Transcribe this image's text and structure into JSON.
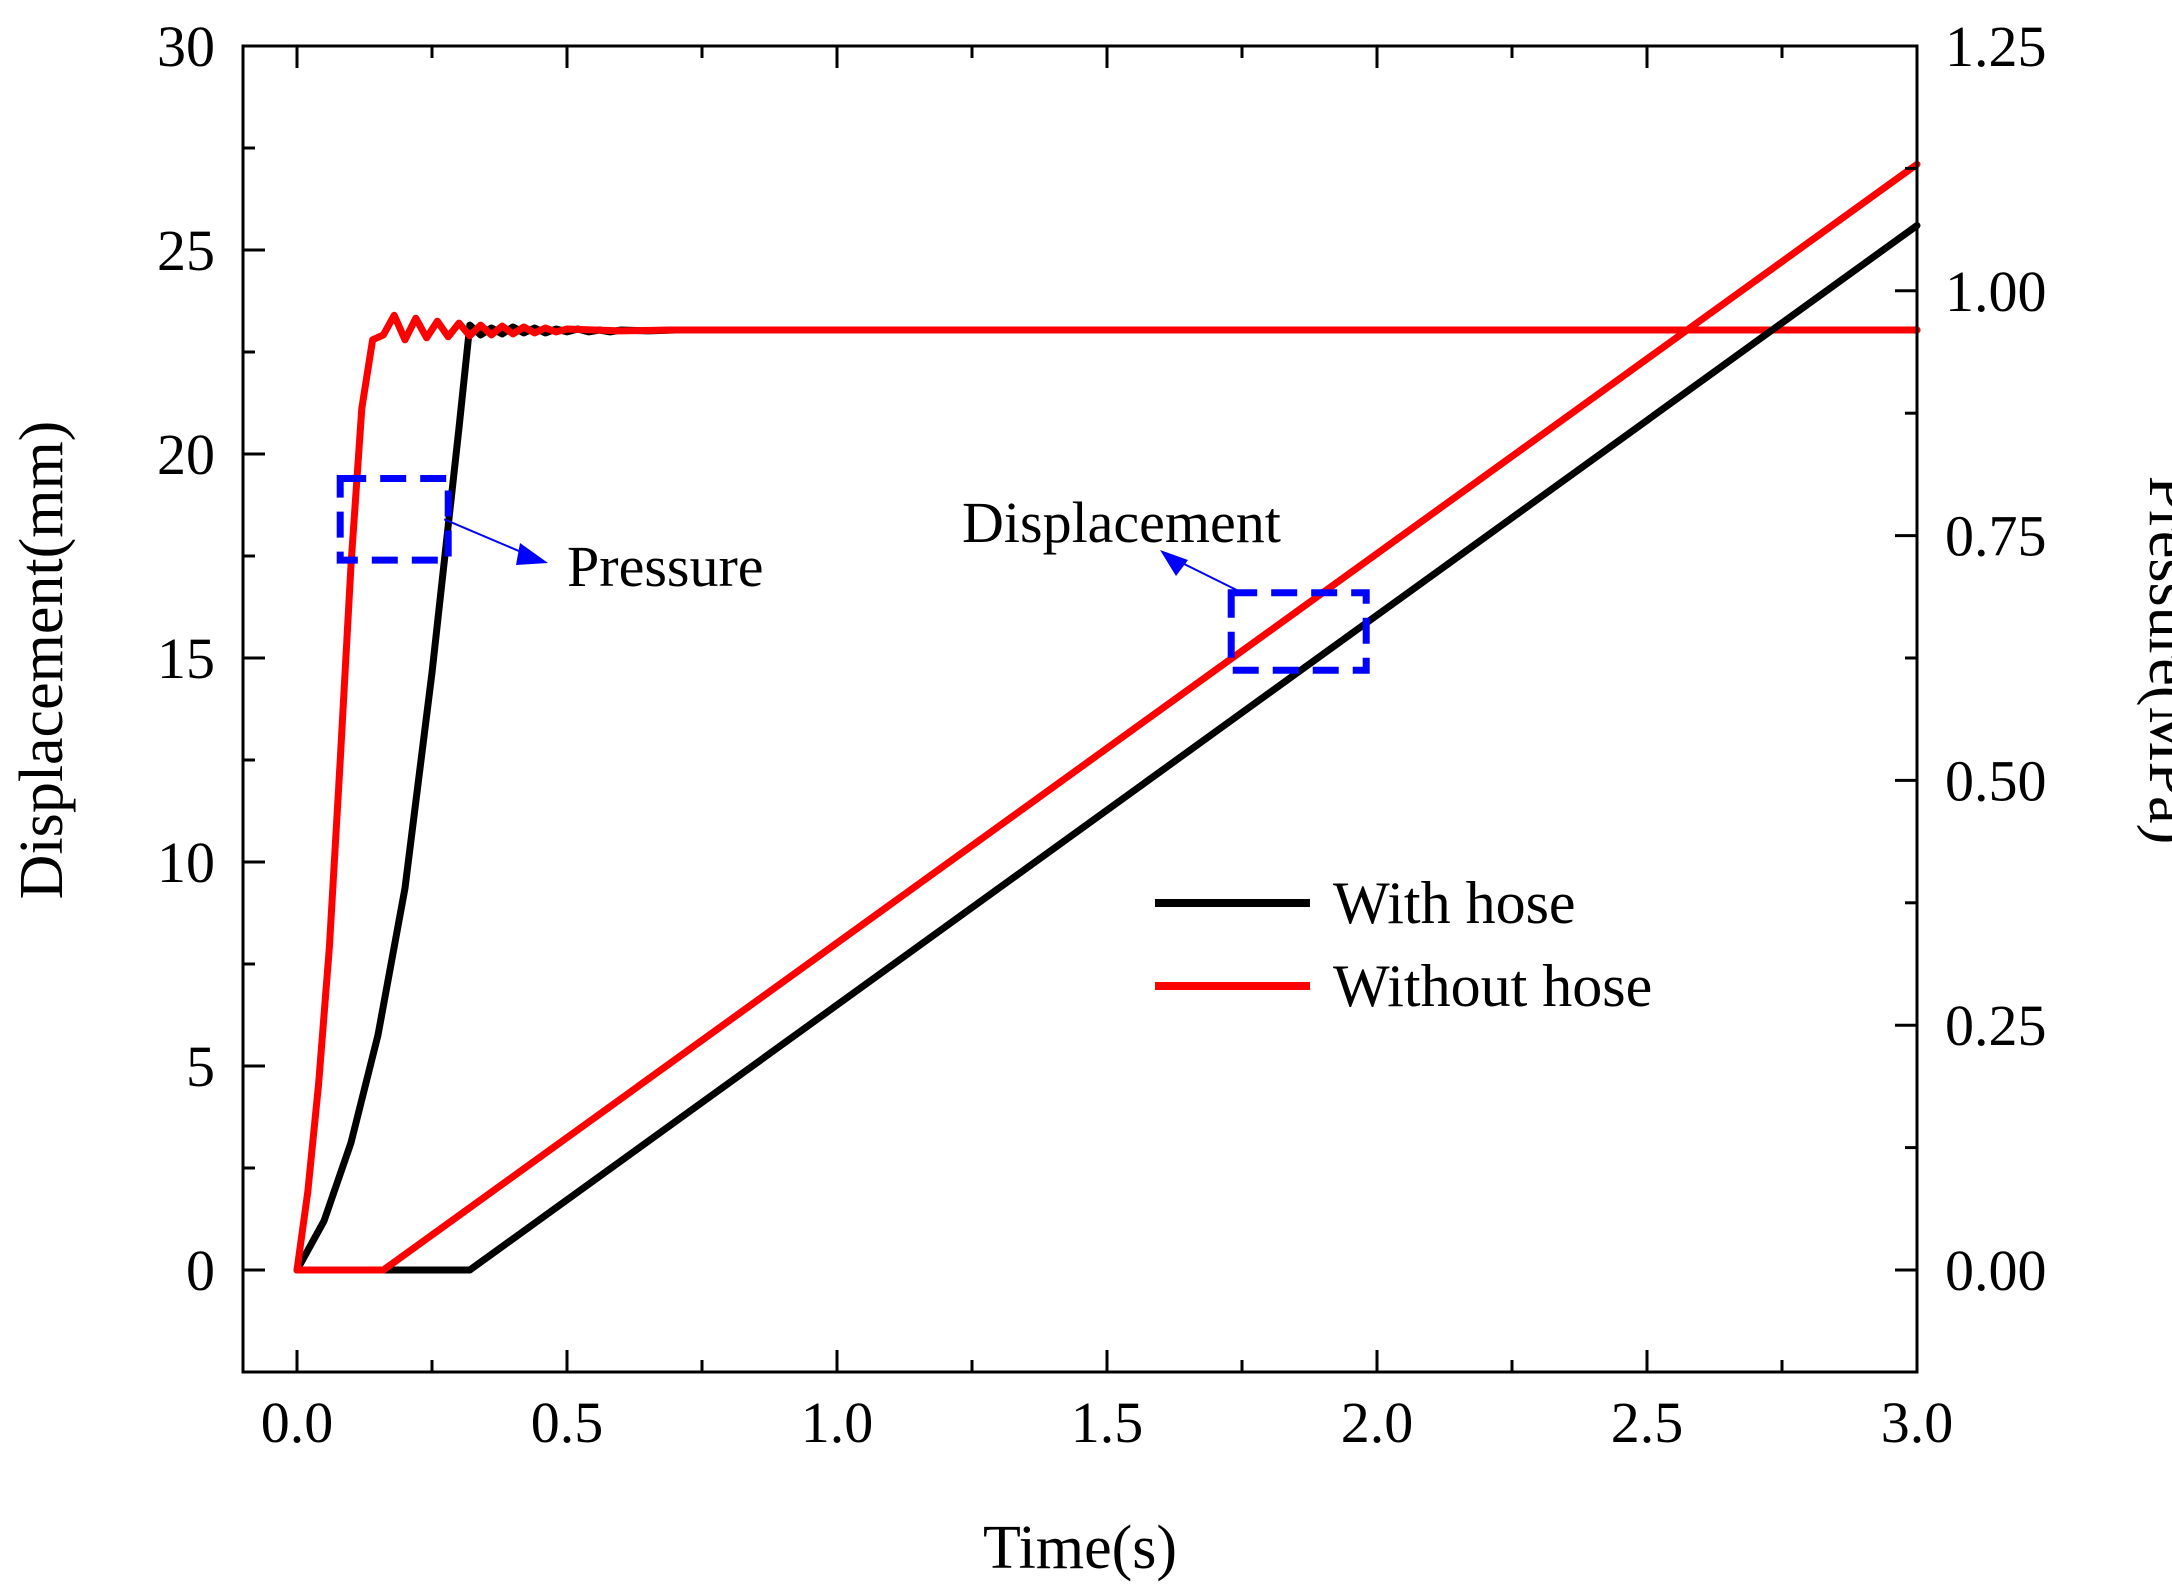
{
  "chart_data": {
    "type": "line",
    "title": "",
    "xlabel": "Time(s)",
    "ylabel": "Displacement(mm)",
    "y2label": "Pressure(MPa)",
    "xlim": [
      -0.1,
      3.0
    ],
    "ylim": [
      -2.5,
      30
    ],
    "y2lim": [
      -0.1041667,
      1.25
    ],
    "x_ticks": [
      "0.0",
      "0.5",
      "1.0",
      "1.5",
      "2.0",
      "2.5",
      "3.0"
    ],
    "y_ticks": [
      "0",
      "5",
      "10",
      "15",
      "20",
      "25",
      "30"
    ],
    "y2_ticks": [
      "0.00",
      "0.25",
      "0.50",
      "0.75",
      "1.00",
      "1.25"
    ],
    "legend": [
      "With hose",
      "Without hose"
    ],
    "legend_position": "lower-right",
    "colors": {
      "with_hose": "#000000",
      "without_hose": "#ff0000",
      "annotation": "#0000ff"
    },
    "series": [
      {
        "name": "With hose",
        "quantity": "pressure",
        "axis": "right",
        "color": "#000000",
        "x": [
          0,
          0.05,
          0.1,
          0.15,
          0.2,
          0.25,
          0.28,
          0.3,
          0.32,
          0.34,
          0.36,
          0.38,
          0.4,
          0.42,
          0.44,
          0.46,
          0.48,
          0.5,
          0.52,
          0.54,
          0.56,
          0.58,
          0.6,
          0.65,
          0.7,
          0.8,
          1.0,
          2.0,
          3.0
        ],
        "y": [
          0,
          0.05,
          0.13,
          0.24,
          0.39,
          0.61,
          0.76,
          0.86,
          0.965,
          0.955,
          0.962,
          0.956,
          0.963,
          0.957,
          0.962,
          0.957,
          0.961,
          0.958,
          0.961,
          0.958,
          0.96,
          0.958,
          0.96,
          0.959,
          0.96,
          0.96,
          0.96,
          0.96,
          0.96
        ]
      },
      {
        "name": "Without hose",
        "quantity": "pressure",
        "axis": "right",
        "color": "#ff0000",
        "x": [
          0,
          0.02,
          0.04,
          0.06,
          0.08,
          0.1,
          0.12,
          0.14,
          0.16,
          0.18,
          0.2,
          0.22,
          0.24,
          0.26,
          0.28,
          0.3,
          0.32,
          0.34,
          0.36,
          0.38,
          0.4,
          0.42,
          0.44,
          0.46,
          0.48,
          0.5,
          0.55,
          0.6,
          0.7,
          0.8,
          1.0,
          2.0,
          3.0
        ],
        "y": [
          0,
          0.08,
          0.19,
          0.33,
          0.52,
          0.72,
          0.88,
          0.95,
          0.955,
          0.975,
          0.95,
          0.972,
          0.952,
          0.969,
          0.953,
          0.967,
          0.954,
          0.965,
          0.955,
          0.964,
          0.956,
          0.963,
          0.957,
          0.962,
          0.958,
          0.961,
          0.96,
          0.959,
          0.96,
          0.96,
          0.96,
          0.96,
          0.96
        ]
      },
      {
        "name": "With hose",
        "quantity": "displacement",
        "axis": "left",
        "color": "#000000",
        "x": [
          0,
          0.32,
          3.0
        ],
        "y": [
          0,
          0,
          25.6
        ]
      },
      {
        "name": "Without hose",
        "quantity": "displacement",
        "axis": "left",
        "color": "#ff0000",
        "x": [
          0,
          0.16,
          3.0
        ],
        "y": [
          0,
          0,
          27.1
        ]
      }
    ],
    "annotations": [
      {
        "text": "Pressure",
        "target": "pressure curves",
        "box_x": [
          0.08,
          0.28
        ],
        "box_y": [
          17.4,
          19.4
        ]
      },
      {
        "text": "Displacement",
        "target": "displacement curves",
        "box_x": [
          1.73,
          1.98
        ],
        "box_y": [
          14.7,
          16.6
        ]
      }
    ]
  }
}
